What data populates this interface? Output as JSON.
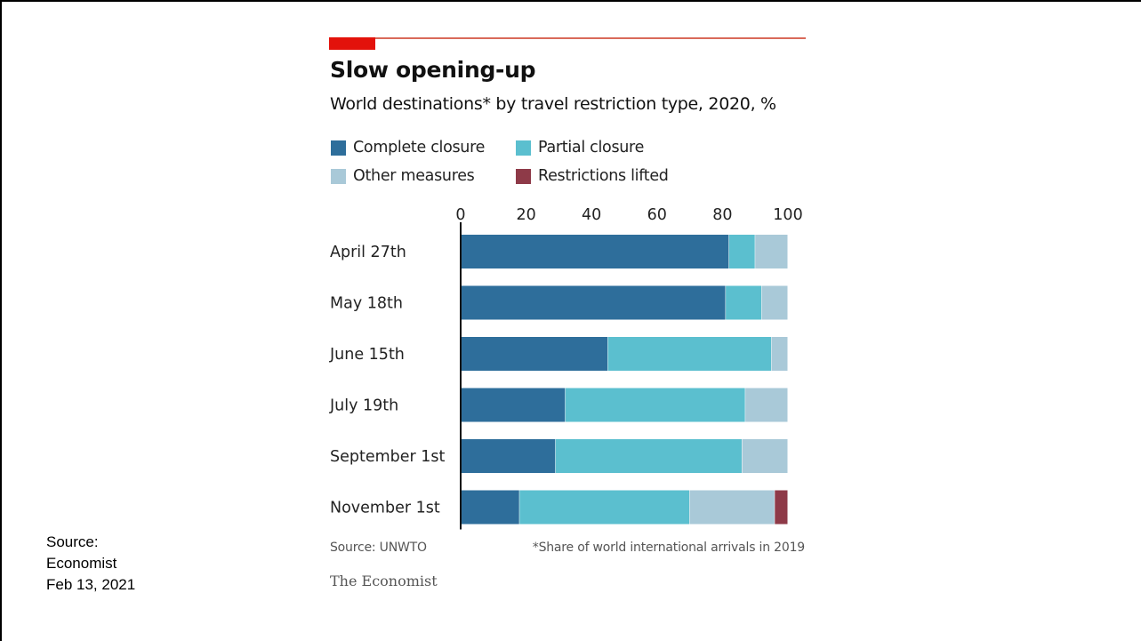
{
  "side_source": {
    "line1": "Source:",
    "line2": "Economist",
    "line3": "Feb 13, 2021"
  },
  "colors": {
    "brand_red": "#e3120b",
    "rule": "#d96a5a",
    "axis": "#111111",
    "complete_closure": "#2e6e9b",
    "partial_closure": "#5bbfcf",
    "other_measures": "#a9c9d8",
    "restrictions_lifted": "#8e3a48"
  },
  "chart_data": {
    "type": "bar",
    "orientation": "horizontal",
    "stacked": true,
    "title": "Slow opening-up",
    "subtitle": "World destinations* by travel restriction type, 2020, %",
    "categories": [
      "April 27th",
      "May 18th",
      "June 15th",
      "July 19th",
      "September 1st",
      "November 1st"
    ],
    "series": [
      {
        "name": "Complete closure",
        "color": "#2e6e9b",
        "values": [
          82,
          81,
          45,
          32,
          29,
          18
        ]
      },
      {
        "name": "Partial closure",
        "color": "#5bbfcf",
        "values": [
          8,
          11,
          50,
          55,
          57,
          52
        ]
      },
      {
        "name": "Other measures",
        "color": "#a9c9d8",
        "values": [
          10,
          8,
          5,
          13,
          14,
          26
        ]
      },
      {
        "name": "Restrictions lifted",
        "color": "#8e3a48",
        "values": [
          0,
          0,
          0,
          0,
          0,
          4
        ]
      }
    ],
    "xlim": [
      0,
      100
    ],
    "xticks": [
      0,
      20,
      40,
      60,
      80,
      100
    ],
    "xaxis_position": "top",
    "legend_position": "top-left",
    "grid": false,
    "source": "Source: UNWTO",
    "footnote": "*Share of world international arrivals in 2019",
    "brand": "The Economist"
  }
}
